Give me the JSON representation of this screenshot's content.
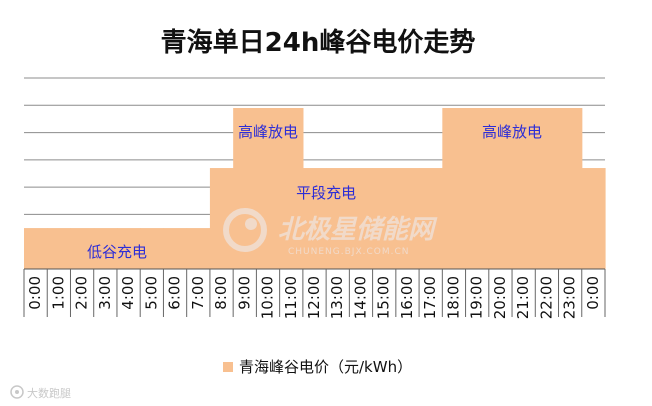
{
  "chart_data": {
    "type": "area",
    "title": "青海单日24h峰谷电价走势",
    "xlabel": "",
    "ylabel": "",
    "categories": [
      "0:00",
      "1:00",
      "2:00",
      "3:00",
      "4:00",
      "5:00",
      "6:00",
      "7:00",
      "8:00",
      "9:00",
      "10:00",
      "11:00",
      "12:00",
      "13:00",
      "14:00",
      "15:00",
      "16:00",
      "17:00",
      "18:00",
      "19:00",
      "20:00",
      "21:00",
      "22:00",
      "23:00",
      "0:00"
    ],
    "series": [
      {
        "name": "青海峰谷电价（元/kWh）",
        "color": "#f8c090",
        "values": [
          0.15,
          0.15,
          0.15,
          0.15,
          0.15,
          0.15,
          0.15,
          0.15,
          0.37,
          0.59,
          0.59,
          0.59,
          0.37,
          0.37,
          0.37,
          0.37,
          0.37,
          0.37,
          0.59,
          0.59,
          0.59,
          0.59,
          0.59,
          0.59,
          0.37
        ]
      }
    ],
    "ylim": [
      0,
      0.7
    ],
    "y_gridlines": [
      0.1,
      0.2,
      0.3,
      0.4,
      0.5,
      0.6,
      0.7
    ],
    "grid": true,
    "legend_position": "bottom",
    "annotations": [
      {
        "text": "低谷充电"
      },
      {
        "text": "高峰放电"
      },
      {
        "text": "平段充电"
      },
      {
        "text": "高峰放电"
      }
    ]
  },
  "watermark": {
    "main": "北极星储能网",
    "sub": "CHUNENG.BJX.COM.CN"
  },
  "corner_mark": {
    "text": "大数跑腿"
  },
  "colors": {
    "fill": "#f8c090",
    "grid": "#8c8c8c",
    "annotation": "#2d2dd6",
    "title": "#111111"
  }
}
